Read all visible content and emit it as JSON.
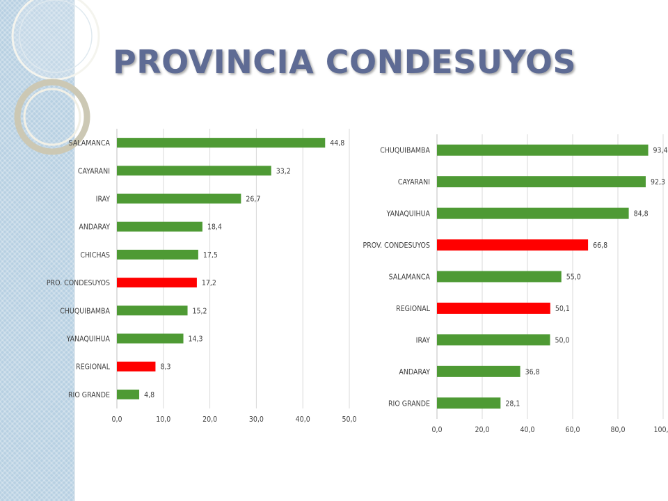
{
  "title": "PROVINCIA CONDESUYOS",
  "colors": {
    "default_bar": "#4e9a34",
    "highlight_bar": "#ff0000",
    "title": "#5e6b94"
  },
  "chart_data": [
    {
      "type": "bar",
      "orientation": "horizontal",
      "categories": [
        "SALAMANCA",
        "CAYARANI",
        "IRAY",
        "ANDARAY",
        "CHICHAS",
        "PRO. CONDESUYOS",
        "CHUQUIBAMBA",
        "YANAQUIHUA",
        "REGIONAL",
        "RIO GRANDE"
      ],
      "values": [
        44.8,
        33.2,
        26.7,
        18.4,
        17.5,
        17.2,
        15.2,
        14.3,
        8.3,
        4.8
      ],
      "value_labels": [
        "44,8",
        "33,2",
        "26,7",
        "18,4",
        "17,5",
        "17,2",
        "15,2",
        "14,3",
        "8,3",
        "4,8"
      ],
      "highlighted": [
        "PRO. CONDESUYOS",
        "REGIONAL"
      ],
      "xlim": [
        0,
        50
      ],
      "xticks": [
        0,
        10,
        20,
        30,
        40,
        50
      ],
      "xtick_labels": [
        "0,0",
        "10,0",
        "20,0",
        "30,0",
        "40,0",
        "50,0"
      ],
      "grid": true,
      "legend": "none"
    },
    {
      "type": "bar",
      "orientation": "horizontal",
      "categories": [
        "CHUQUIBAMBA",
        "CAYARANI",
        "YANAQUIHUA",
        "PROV. CONDESUYOS",
        "SALAMANCA",
        "REGIONAL",
        "IRAY",
        "ANDARAY",
        "RIO GRANDE"
      ],
      "values": [
        93.4,
        92.3,
        84.8,
        66.8,
        55.0,
        50.1,
        50.0,
        36.8,
        28.1
      ],
      "value_labels": [
        "93,4",
        "92,3",
        "84,8",
        "66,8",
        "55,0",
        "50,1",
        "50,0",
        "36,8",
        "28,1"
      ],
      "highlighted": [
        "PROV. CONDESUYOS",
        "REGIONAL"
      ],
      "xlim": [
        0,
        100
      ],
      "xticks": [
        0,
        20,
        40,
        60,
        80,
        100
      ],
      "xtick_labels": [
        "0,0",
        "20,0",
        "40,0",
        "60,0",
        "80,0",
        "100,0"
      ],
      "grid": true,
      "legend": "none"
    }
  ]
}
